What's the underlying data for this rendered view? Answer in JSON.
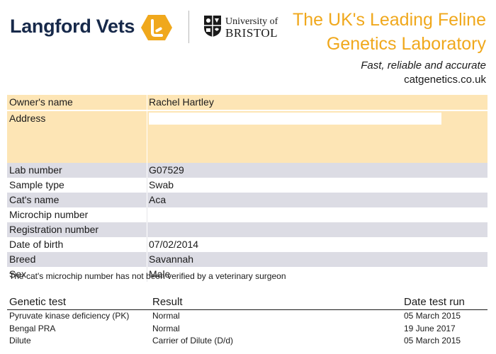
{
  "header": {
    "brand": "Langford Vets",
    "university_line1": "University of",
    "university_line2": "BRISTOL",
    "title_line1": "The UK's Leading Feline",
    "title_line2": "Genetics Laboratory",
    "tagline": "Fast, reliable and accurate",
    "website": "catgenetics.co.uk"
  },
  "colors": {
    "accent": "#f0a81c",
    "brand_navy": "#17294a",
    "orange_row": "#fde5b5",
    "grey_row": "#dcdce4"
  },
  "icons": {
    "langford_badge": "langford-badge-icon",
    "bristol_crest": "bristol-crest-icon"
  },
  "info": {
    "owner_label": "Owner's name",
    "owner_value": "Rachel Hartley",
    "address_label": "Address",
    "address_value": "",
    "lab_label": "Lab number",
    "lab_value": "G07529",
    "sample_label": "Sample type",
    "sample_value": "Swab",
    "cat_label": "Cat's name",
    "cat_value": "Aca",
    "microchip_label": "Microchip number",
    "microchip_value": "",
    "registration_label": "Registration number",
    "registration_value": "",
    "dob_label": "Date of birth",
    "dob_value": "07/02/2014",
    "breed_label": "Breed",
    "breed_value": "Savannah",
    "sex_label": "Sex",
    "sex_value": "Male"
  },
  "note": "The cat's microchip number has not been verified by a veterinary surgeon",
  "results": {
    "headers": [
      "Genetic test",
      "Result",
      "Date test run"
    ],
    "rows": [
      [
        "Pyruvate kinase deficiency (PK)",
        "Normal",
        "05 March 2015"
      ],
      [
        "Bengal PRA",
        "Normal",
        "19 June 2017"
      ],
      [
        "Dilute",
        "Carrier of Dilute (D/d)",
        "05 March 2015"
      ]
    ]
  }
}
